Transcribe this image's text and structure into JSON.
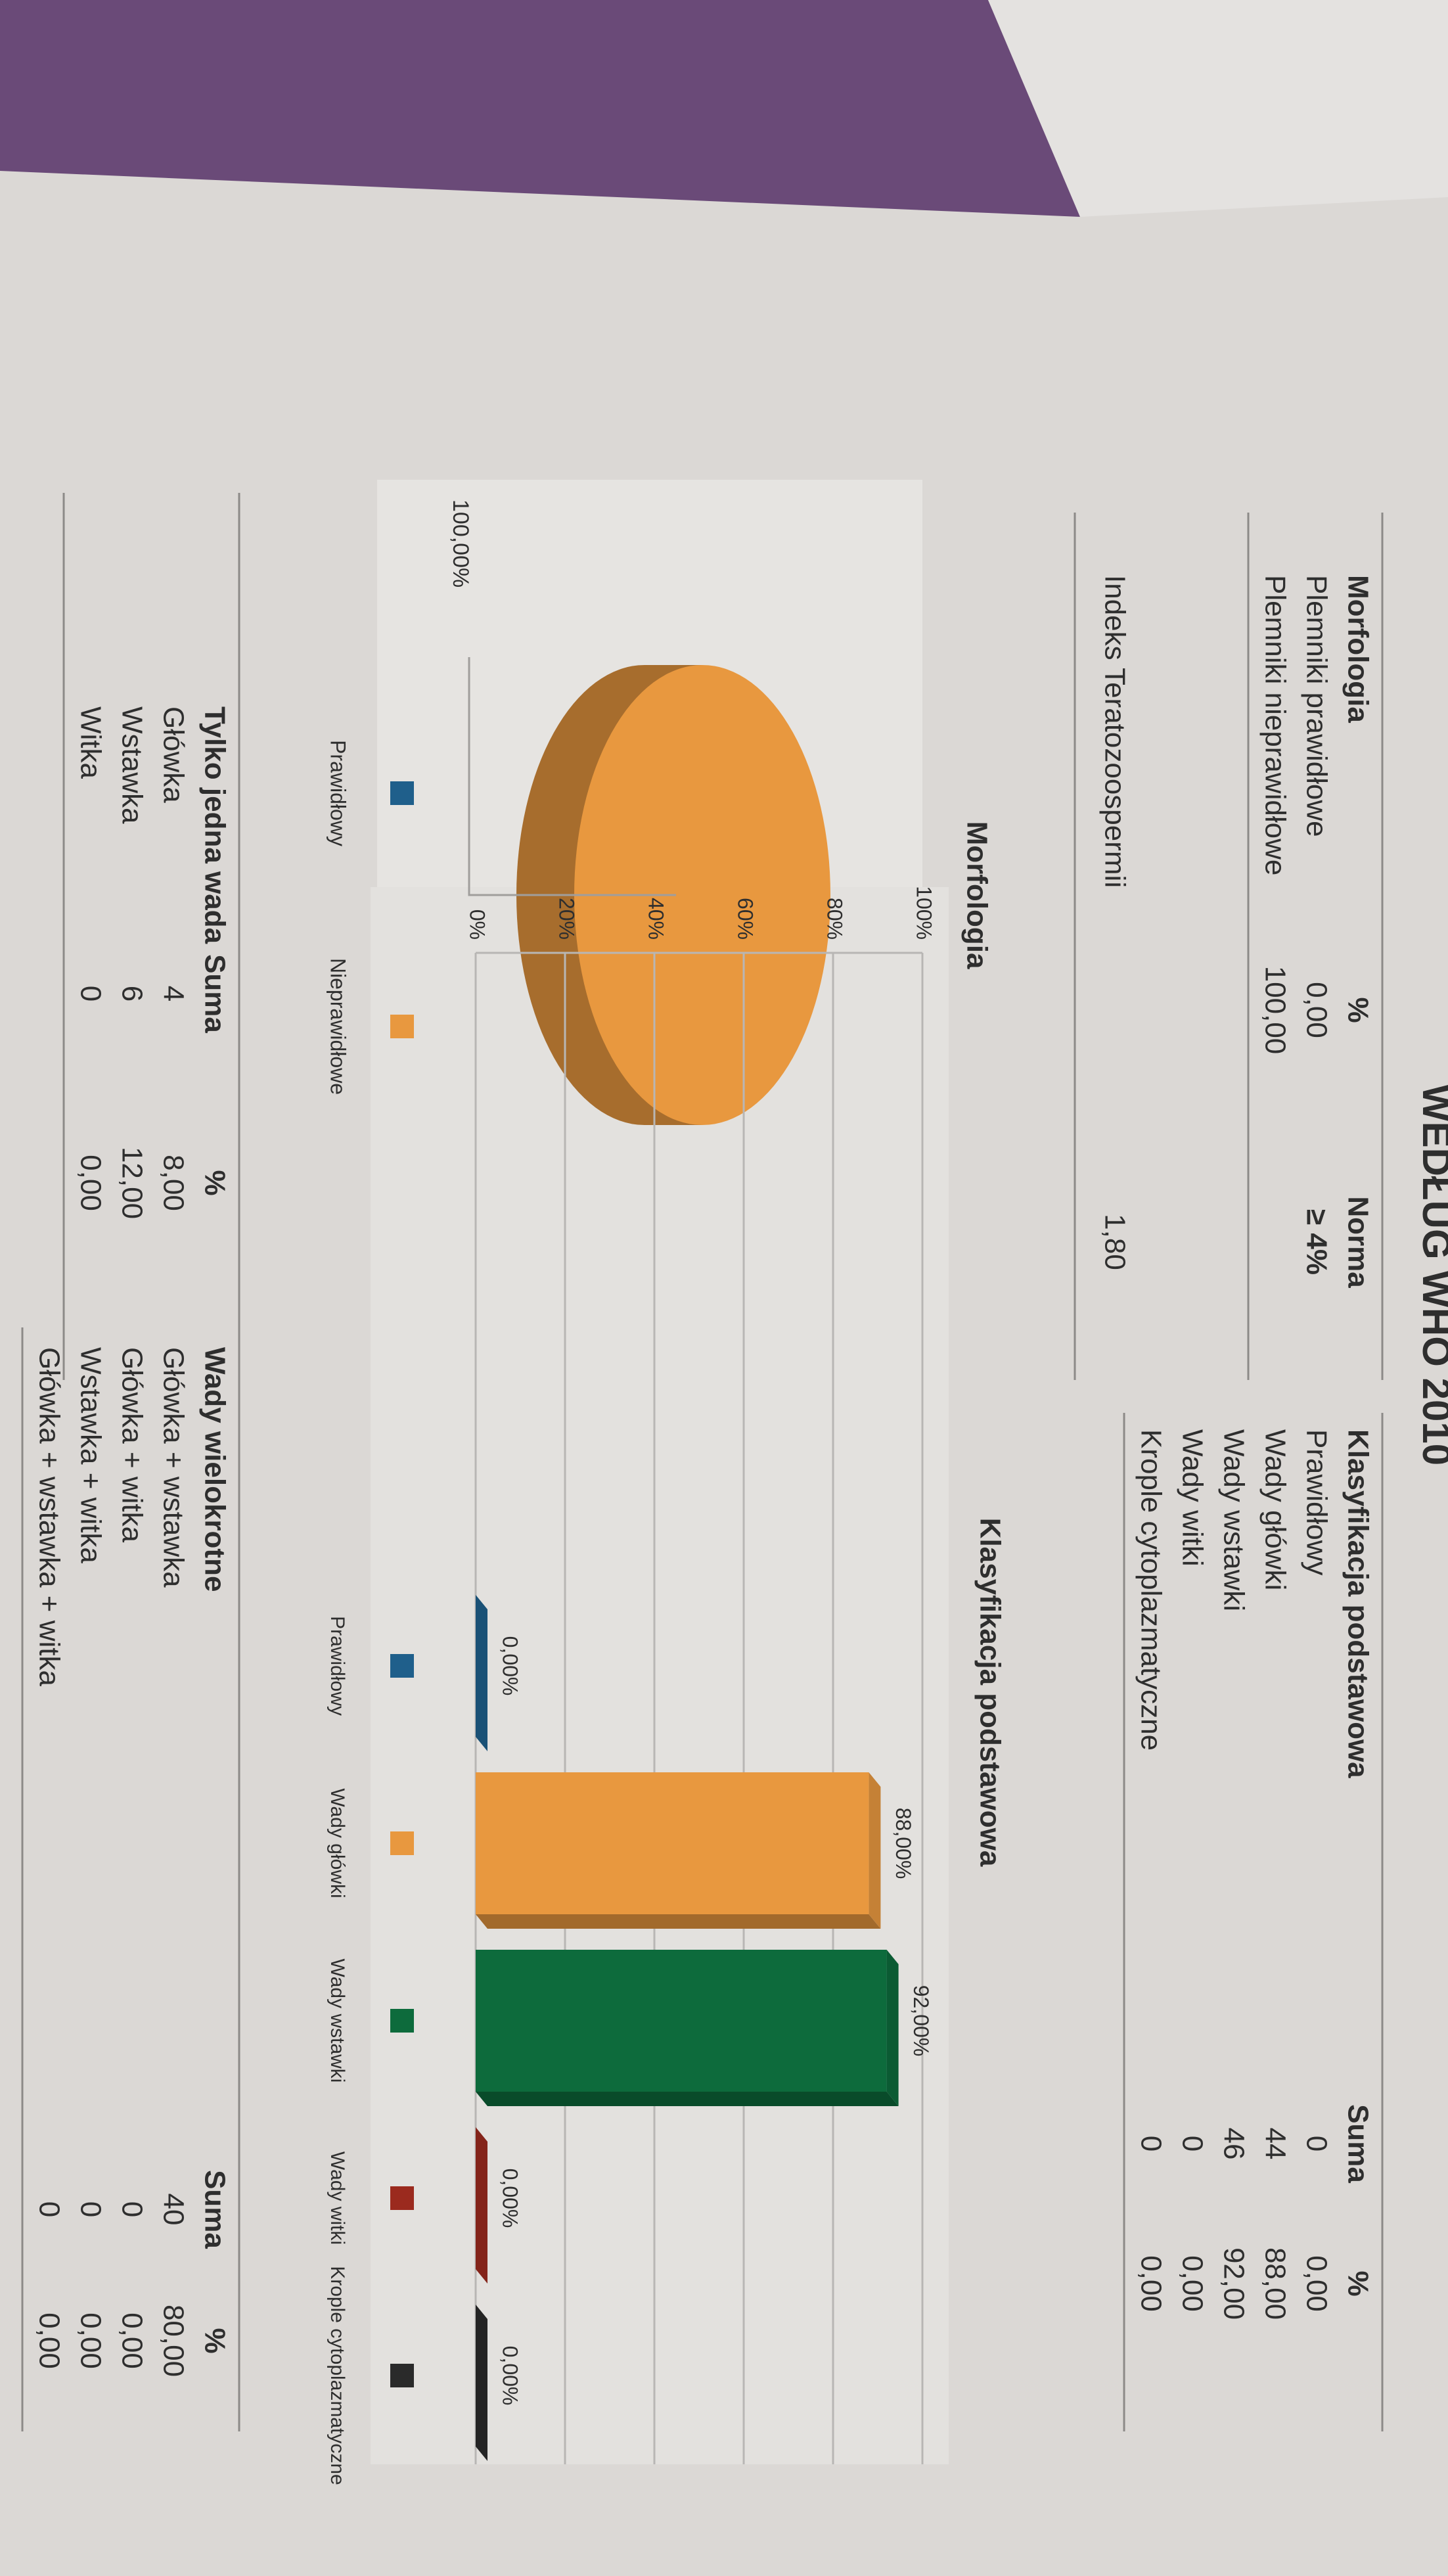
{
  "header": {
    "title": "WEDŁUG WHO 2010"
  },
  "tables": [
    {
      "columns": [
        "Morfologia",
        "%",
        "Norma"
      ],
      "rows": [
        [
          "Plemniki prawidłowe",
          "0,00",
          "≥ 4%"
        ],
        [
          "Plemniki nieprawidłowe",
          "100,00"
        ]
      ]
    },
    {
      "columns": [
        "Klasyfikacja podstawowa",
        "Suma",
        "%"
      ],
      "rows": [
        [
          "Prawidłowy",
          "0",
          "0,00"
        ],
        [
          "Wady główki",
          "44",
          "88,00"
        ],
        [
          "Wady wstawki",
          "46",
          "92,00"
        ],
        [
          "Wady witki",
          "0",
          "0,00"
        ],
        [
          "Krople cytoplazmatyczne",
          "0",
          "0,00"
        ]
      ]
    },
    {
      "columns": [
        "Tylko jedna wada",
        "Suma",
        "%"
      ],
      "rows": [
        [
          "Główka",
          "4",
          "8,00"
        ],
        [
          "Wstawka",
          "6",
          "12,00"
        ],
        [
          "Witka",
          "0",
          "0,00"
        ]
      ]
    },
    {
      "columns": [
        "Wady wielokrotne",
        "Suma",
        "%"
      ],
      "rows": [
        [
          "Główka + wstawka",
          "40",
          "80,00"
        ],
        [
          "Główka + witka",
          "0",
          "0,00"
        ],
        [
          "Wstawka + witka",
          "0",
          "0,00"
        ],
        [
          "Główka + wstawka + witka",
          "0",
          "0,00"
        ]
      ]
    }
  ],
  "index": {
    "label": "Indeks Teratozoospermii",
    "value": "1,80"
  },
  "chart_data": [
    {
      "type": "pie",
      "title": "Morfologia",
      "categories": [
        "Prawidłowy",
        "Nieprawidłowe"
      ],
      "values": [
        0,
        100
      ],
      "value_labels": [
        null,
        "100,00%"
      ],
      "colors": [
        "#1f5f8b",
        "#e8983f"
      ]
    },
    {
      "type": "bar",
      "title": "Klasyfikacja podstawowa",
      "categories": [
        "Prawidłowy",
        "Wady główki",
        "Wady wstawki",
        "Wady witki",
        "Krople cytoplazmatyczne"
      ],
      "values": [
        0,
        88,
        92,
        0,
        0
      ],
      "value_labels": [
        "0,00%",
        "88,00%",
        "92,00%",
        "0,00%",
        "0,00%"
      ],
      "colors": [
        "#1f5f8b",
        "#e8983f",
        "#0d6b3c",
        "#9b2a1e",
        "#2a2a2a"
      ],
      "ylim": [
        0,
        100
      ],
      "yticks": [
        {
          "value": 0,
          "label": "0%"
        },
        {
          "value": 20,
          "label": "20%"
        },
        {
          "value": 40,
          "label": "40%"
        },
        {
          "value": 60,
          "label": "60%"
        },
        {
          "value": 80,
          "label": "80%"
        },
        {
          "value": 100,
          "label": "100%"
        }
      ],
      "grid": true
    }
  ]
}
